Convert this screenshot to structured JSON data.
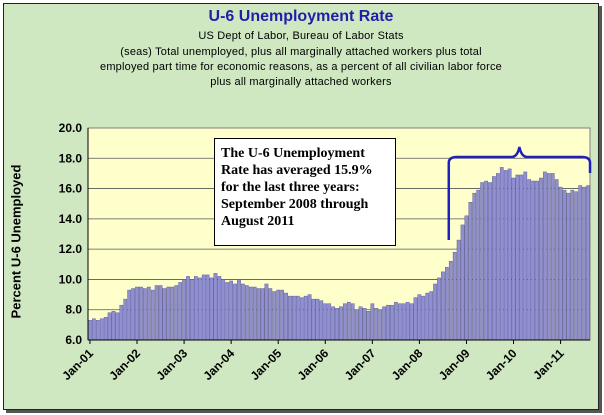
{
  "chart_data": {
    "type": "bar",
    "title": "U-6 Unemployment Rate",
    "subtitle_source": "US Dept of Labor, Bureau of Labor Stats",
    "subtitle_lines": [
      "(seas) Total unemployed, plus all marginally attached workers plus total",
      "employed part time for economic reasons, as a percent of all civilian labor force",
      "plus all marginally attached workers"
    ],
    "ylabel": "Percent U-6 Unemployed",
    "xlabel": "",
    "ylim": [
      6.0,
      20.0
    ],
    "y_ticks": [
      "6.0",
      "8.0",
      "10.0",
      "12.0",
      "14.0",
      "16.0",
      "18.0",
      "20.0"
    ],
    "x_tick_labels": [
      "Jan-01",
      "Jan-02",
      "Jan-03",
      "Jan-04",
      "Jan-05",
      "Jan-06",
      "Jan-07",
      "Jan-08",
      "Jan-09",
      "Jan-10",
      "Jan-11"
    ],
    "grid": true,
    "start": "Jan-01",
    "end": "Aug-11",
    "bar_color": "#9090d0",
    "background_color": "#ffffcc",
    "values": [
      7.3,
      7.4,
      7.3,
      7.4,
      7.5,
      7.8,
      7.9,
      7.8,
      8.3,
      8.7,
      9.3,
      9.4,
      9.5,
      9.5,
      9.4,
      9.5,
      9.3,
      9.6,
      9.6,
      9.4,
      9.5,
      9.5,
      9.6,
      9.8,
      10.0,
      10.2,
      10.0,
      10.2,
      10.1,
      10.3,
      10.3,
      10.1,
      10.4,
      10.2,
      10.0,
      9.8,
      9.9,
      9.7,
      10.0,
      9.7,
      9.6,
      9.5,
      9.5,
      9.4,
      9.4,
      9.7,
      9.4,
      9.2,
      9.3,
      9.3,
      9.1,
      8.9,
      8.9,
      8.9,
      8.8,
      8.9,
      9.0,
      8.7,
      8.7,
      8.6,
      8.4,
      8.4,
      8.2,
      8.1,
      8.2,
      8.4,
      8.5,
      8.4,
      8.0,
      8.2,
      8.1,
      7.9,
      8.4,
      8.1,
      8.0,
      8.2,
      8.3,
      8.3,
      8.5,
      8.4,
      8.4,
      8.5,
      8.4,
      8.8,
      9.0,
      8.9,
      9.1,
      9.2,
      9.7,
      10.1,
      10.5,
      10.8,
      11.2,
      11.8,
      12.6,
      13.6,
      14.2,
      15.1,
      15.7,
      15.9,
      16.4,
      16.5,
      16.4,
      16.8,
      17.0,
      17.4,
      17.2,
      17.3,
      16.7,
      16.9,
      16.9,
      17.1,
      16.6,
      16.5,
      16.5,
      16.7,
      17.1,
      17.0,
      17.0,
      16.6,
      16.1,
      15.9,
      15.7,
      15.9,
      15.8,
      16.2,
      16.1,
      16.2
    ],
    "bracket": {
      "start": "Sep-08",
      "end": "Aug-11"
    },
    "annotation": "The U-6 Unemployment Rate has averaged 15.9% for the last three years: September 2008 through August 2011"
  }
}
